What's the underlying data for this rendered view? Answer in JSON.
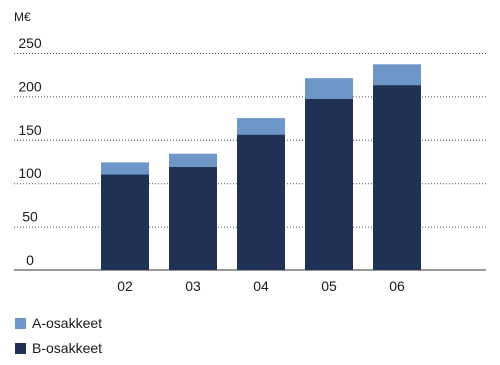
{
  "chart_data": {
    "type": "bar",
    "stacked": true,
    "title": "",
    "unit": "M€",
    "xlabel": "",
    "ylabel": "",
    "ylim": [
      0,
      250
    ],
    "yticks": [
      0,
      50,
      100,
      150,
      200,
      250
    ],
    "categories": [
      "02",
      "03",
      "04",
      "05",
      "06"
    ],
    "series": [
      {
        "name": "B-osakkeet",
        "color": "#1f3154",
        "values": [
          110,
          119,
          156,
          197,
          213
        ]
      },
      {
        "name": "A-osakkeet",
        "color": "#6f96c9",
        "values": [
          14,
          15,
          19,
          24,
          24
        ]
      }
    ],
    "legend": {
      "placement": "bottom-left",
      "order": [
        "A-osakkeet",
        "B-osakkeet"
      ]
    },
    "grid": {
      "y": true,
      "style": "dotted",
      "color": "#555555"
    }
  }
}
